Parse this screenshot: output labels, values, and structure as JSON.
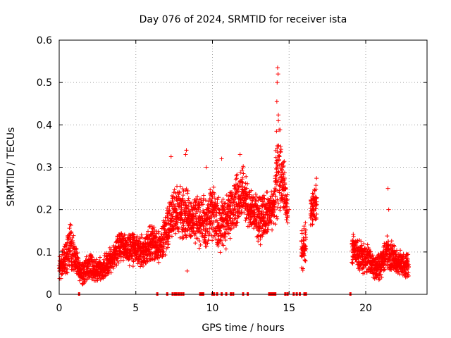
{
  "chart_data": {
    "type": "scatter",
    "title": "Day 076 of 2024, SRMTID for receiver ista",
    "xlabel": "GPS time / hours",
    "ylabel": "SRMTID / TECUs",
    "xlim": [
      0,
      24
    ],
    "ylim": [
      0,
      0.6
    ],
    "xticks": [
      0,
      5,
      10,
      15,
      20
    ],
    "xtick_labels": [
      "0",
      "5",
      "10",
      "15",
      "20"
    ],
    "yticks": [
      0,
      0.1,
      0.2,
      0.3,
      0.4,
      0.5,
      0.6
    ],
    "ytick_labels": [
      "0",
      "0.1",
      "0.2",
      "0.3",
      "0.4",
      "0.5",
      "0.6"
    ],
    "grid": true,
    "marker": "plus",
    "series_color": "#ff0000",
    "envelope": [
      {
        "x": 0.0,
        "center": 0.065,
        "spread": 0.022
      },
      {
        "x": 0.5,
        "center": 0.085,
        "spread": 0.03
      },
      {
        "x": 0.7,
        "center": 0.12,
        "spread": 0.045
      },
      {
        "x": 1.0,
        "center": 0.09,
        "spread": 0.03
      },
      {
        "x": 1.3,
        "center": 0.055,
        "spread": 0.02
      },
      {
        "x": 1.6,
        "center": 0.05,
        "spread": 0.022
      },
      {
        "x": 2.0,
        "center": 0.07,
        "spread": 0.025
      },
      {
        "x": 2.4,
        "center": 0.055,
        "spread": 0.02
      },
      {
        "x": 3.0,
        "center": 0.065,
        "spread": 0.025
      },
      {
        "x": 3.5,
        "center": 0.09,
        "spread": 0.025
      },
      {
        "x": 4.0,
        "center": 0.12,
        "spread": 0.03
      },
      {
        "x": 4.5,
        "center": 0.1,
        "spread": 0.03
      },
      {
        "x": 5.0,
        "center": 0.11,
        "spread": 0.035
      },
      {
        "x": 5.5,
        "center": 0.1,
        "spread": 0.03
      },
      {
        "x": 6.0,
        "center": 0.12,
        "spread": 0.035
      },
      {
        "x": 6.5,
        "center": 0.11,
        "spread": 0.03
      },
      {
        "x": 7.0,
        "center": 0.15,
        "spread": 0.04
      },
      {
        "x": 7.5,
        "center": 0.2,
        "spread": 0.05
      },
      {
        "x": 8.0,
        "center": 0.19,
        "spread": 0.05
      },
      {
        "x": 8.5,
        "center": 0.18,
        "spread": 0.05
      },
      {
        "x": 9.5,
        "center": 0.17,
        "spread": 0.05
      },
      {
        "x": 10.0,
        "center": 0.19,
        "spread": 0.05
      },
      {
        "x": 10.5,
        "center": 0.16,
        "spread": 0.05
      },
      {
        "x": 11.0,
        "center": 0.18,
        "spread": 0.05
      },
      {
        "x": 11.5,
        "center": 0.22,
        "spread": 0.05
      },
      {
        "x": 12.0,
        "center": 0.24,
        "spread": 0.05
      },
      {
        "x": 12.5,
        "center": 0.2,
        "spread": 0.04
      },
      {
        "x": 13.0,
        "center": 0.17,
        "spread": 0.05
      },
      {
        "x": 13.5,
        "center": 0.19,
        "spread": 0.04
      },
      {
        "x": 14.0,
        "center": 0.2,
        "spread": 0.04
      },
      {
        "x": 14.3,
        "center": 0.32,
        "spread": 0.1
      },
      {
        "x": 14.6,
        "center": 0.27,
        "spread": 0.06
      },
      {
        "x": 14.9,
        "center": 0.2,
        "spread": 0.03
      }
    ],
    "segments": [
      {
        "start": 0.0,
        "end": 14.9
      },
      {
        "start": 15.8,
        "end": 16.1
      },
      {
        "start": 16.4,
        "end": 16.8
      },
      {
        "start": 19.1,
        "end": 22.8
      }
    ],
    "late_envelope": [
      {
        "x": 15.8,
        "center": 0.1,
        "spread": 0.04
      },
      {
        "x": 16.1,
        "center": 0.12,
        "spread": 0.04
      },
      {
        "x": 16.4,
        "center": 0.19,
        "spread": 0.04
      },
      {
        "x": 16.8,
        "center": 0.23,
        "spread": 0.04
      },
      {
        "x": 19.1,
        "center": 0.11,
        "spread": 0.03
      },
      {
        "x": 19.6,
        "center": 0.09,
        "spread": 0.03
      },
      {
        "x": 20.2,
        "center": 0.08,
        "spread": 0.03
      },
      {
        "x": 20.6,
        "center": 0.065,
        "spread": 0.025
      },
      {
        "x": 21.0,
        "center": 0.07,
        "spread": 0.025
      },
      {
        "x": 21.4,
        "center": 0.1,
        "spread": 0.035
      },
      {
        "x": 22.0,
        "center": 0.075,
        "spread": 0.025
      },
      {
        "x": 22.5,
        "center": 0.07,
        "spread": 0.025
      },
      {
        "x": 22.8,
        "center": 0.07,
        "spread": 0.02
      }
    ],
    "outliers": [
      {
        "x": 14.25,
        "y": 0.535
      },
      {
        "x": 14.28,
        "y": 0.52
      },
      {
        "x": 14.22,
        "y": 0.5
      },
      {
        "x": 14.2,
        "y": 0.455
      },
      {
        "x": 14.3,
        "y": 0.41
      },
      {
        "x": 14.18,
        "y": 0.385
      },
      {
        "x": 14.3,
        "y": 0.35
      },
      {
        "x": 14.22,
        "y": 0.345
      },
      {
        "x": 7.3,
        "y": 0.325
      },
      {
        "x": 8.3,
        "y": 0.34
      },
      {
        "x": 8.25,
        "y": 0.33
      },
      {
        "x": 10.6,
        "y": 0.32
      },
      {
        "x": 11.8,
        "y": 0.33
      },
      {
        "x": 9.6,
        "y": 0.3
      },
      {
        "x": 21.45,
        "y": 0.25
      },
      {
        "x": 21.5,
        "y": 0.2
      },
      {
        "x": 8.35,
        "y": 0.055
      },
      {
        "x": 15.0,
        "y": 0.2
      }
    ],
    "zero_markers": [
      1.3,
      6.4,
      7.05,
      7.4,
      7.55,
      7.65,
      7.8,
      7.95,
      8.1,
      9.2,
      9.3,
      9.4,
      10.0,
      10.1,
      10.3,
      10.6,
      10.9,
      11.2,
      11.35,
      12.0,
      12.3,
      13.7,
      13.8,
      13.9,
      14.0,
      14.1,
      14.75,
      14.9,
      15.3,
      15.5,
      15.7,
      16.0,
      16.1,
      19.0
    ]
  }
}
